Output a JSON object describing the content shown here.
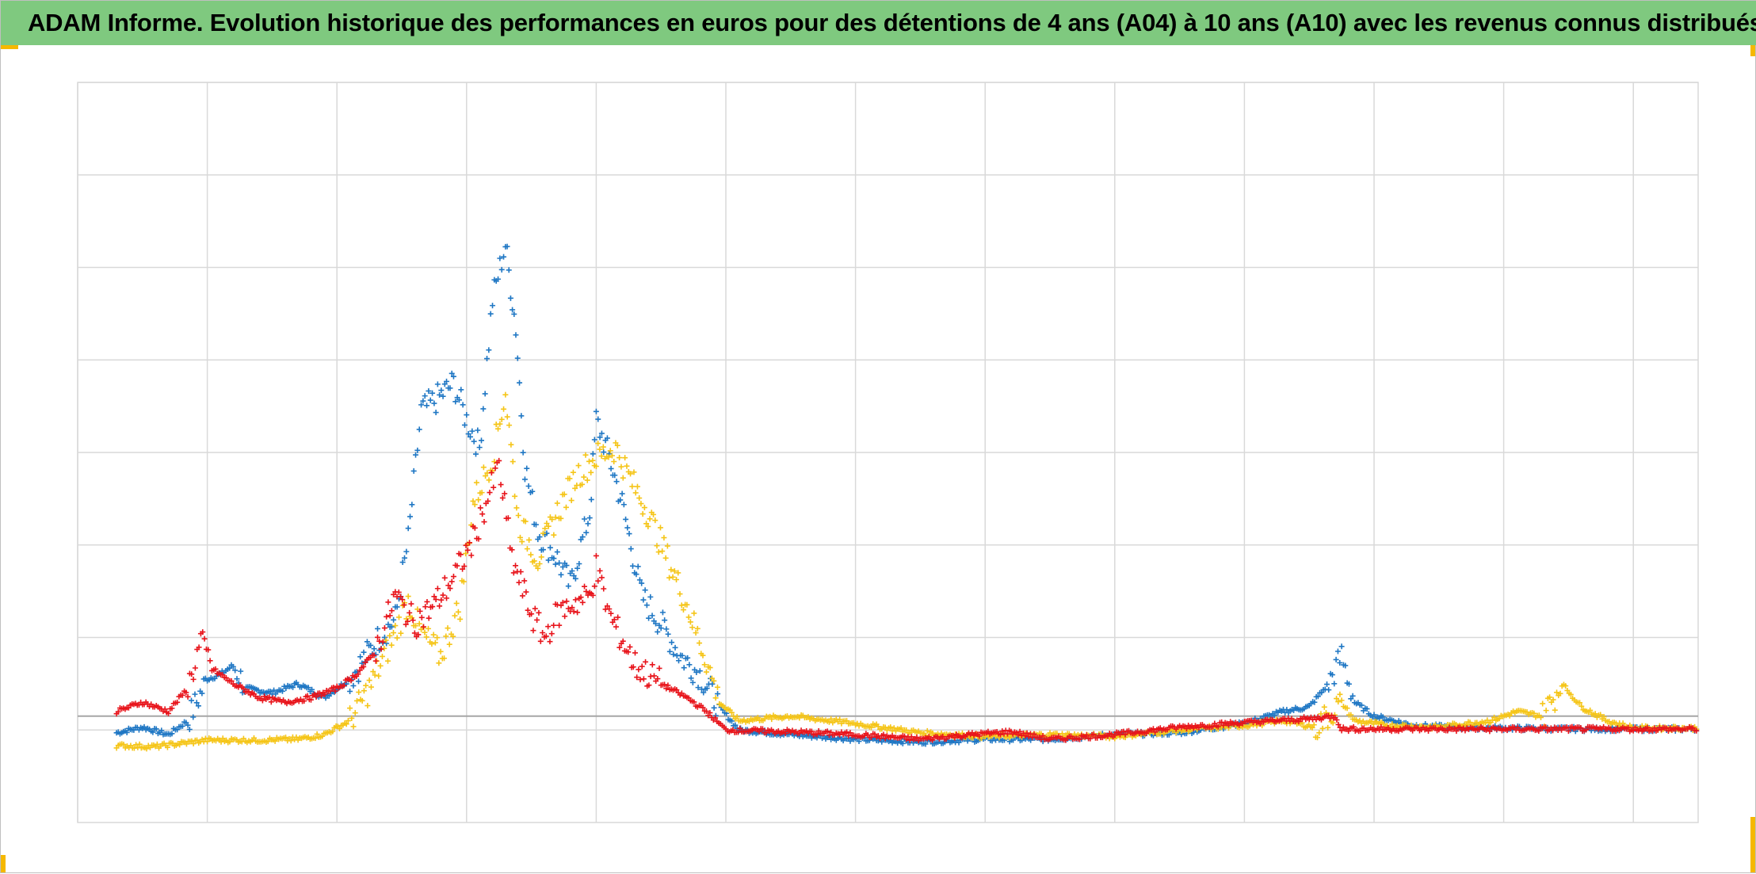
{
  "title": "ADAM Informe. Evolution historique des performances en euros pour des détentions de 4 ans (A04) à 10 ans (A10) avec les revenus connus distribués",
  "colors": {
    "title_bar": "#7fc97f",
    "accent_corners": "#f5b800",
    "grid": "#d9d9d9",
    "baseline": "#a6a6a6"
  },
  "chart_data": {
    "type": "scatter",
    "marker": "plus",
    "title": "ADAM Informe. Evolution historique des performances en euros pour des détentions de 4 ans (A04) à 10 ans (A10) avec les revenus connus distribués",
    "xlabel": "",
    "ylabel": "",
    "tick_labels_visible": false,
    "grid": true,
    "legend": "none",
    "x_gridlines": 13,
    "y_gridlines": 8,
    "xlim": [
      0,
      12.5
    ],
    "ylim": [
      -1.15,
      6.85
    ],
    "baseline_y": 0,
    "series": [
      {
        "color": "#1f77c4",
        "points": [
          [
            0.3,
            -0.18
          ],
          [
            0.5,
            -0.12
          ],
          [
            0.7,
            -0.2
          ],
          [
            0.85,
            -0.05
          ],
          [
            1.0,
            0.4
          ],
          [
            1.1,
            0.45
          ],
          [
            1.2,
            0.55
          ],
          [
            1.3,
            0.3
          ],
          [
            1.5,
            0.25
          ],
          [
            1.7,
            0.35
          ],
          [
            1.9,
            0.2
          ],
          [
            2.1,
            0.4
          ],
          [
            2.3,
            0.8
          ],
          [
            2.45,
            1.05
          ],
          [
            2.55,
            1.9
          ],
          [
            2.65,
            3.3
          ],
          [
            2.75,
            3.4
          ],
          [
            2.9,
            3.6
          ],
          [
            3.0,
            3.2
          ],
          [
            3.1,
            2.9
          ],
          [
            3.2,
            4.5
          ],
          [
            3.3,
            5.1
          ],
          [
            3.38,
            4.2
          ],
          [
            3.45,
            2.7
          ],
          [
            3.55,
            2.0
          ],
          [
            3.7,
            1.7
          ],
          [
            3.8,
            1.4
          ],
          [
            3.95,
            2.2
          ],
          [
            4.0,
            3.2
          ],
          [
            4.1,
            2.8
          ],
          [
            4.2,
            2.3
          ],
          [
            4.35,
            1.3
          ],
          [
            4.5,
            1.0
          ],
          [
            4.65,
            0.65
          ],
          [
            4.8,
            0.45
          ],
          [
            4.95,
            0.1
          ],
          [
            5.1,
            -0.15
          ],
          [
            5.5,
            -0.2
          ],
          [
            6.0,
            -0.25
          ],
          [
            6.5,
            -0.28
          ],
          [
            7.0,
            -0.25
          ],
          [
            7.5,
            -0.25
          ],
          [
            8.0,
            -0.2
          ],
          [
            8.5,
            -0.18
          ],
          [
            9.0,
            -0.08
          ],
          [
            9.3,
            0.05
          ],
          [
            9.5,
            0.1
          ],
          [
            9.65,
            0.35
          ],
          [
            9.75,
            0.65
          ],
          [
            9.85,
            0.15
          ],
          [
            10.0,
            0.0
          ],
          [
            10.3,
            -0.1
          ],
          [
            10.6,
            -0.12
          ],
          [
            11.0,
            -0.13
          ],
          [
            11.5,
            -0.14
          ],
          [
            12.0,
            -0.14
          ],
          [
            12.5,
            -0.14
          ]
        ]
      },
      {
        "color": "#f5c518",
        "points": [
          [
            0.3,
            -0.32
          ],
          [
            0.6,
            -0.33
          ],
          [
            1.0,
            -0.26
          ],
          [
            1.4,
            -0.26
          ],
          [
            1.7,
            -0.25
          ],
          [
            1.9,
            -0.2
          ],
          [
            2.1,
            -0.05
          ],
          [
            2.25,
            0.3
          ],
          [
            2.35,
            0.6
          ],
          [
            2.45,
            0.9
          ],
          [
            2.55,
            1.25
          ],
          [
            2.65,
            0.9
          ],
          [
            2.8,
            0.65
          ],
          [
            2.95,
            1.2
          ],
          [
            3.05,
            2.3
          ],
          [
            3.2,
            2.8
          ],
          [
            3.3,
            3.5
          ],
          [
            3.4,
            2.1
          ],
          [
            3.55,
            1.7
          ],
          [
            3.7,
            2.2
          ],
          [
            3.85,
            2.6
          ],
          [
            4.0,
            2.8
          ],
          [
            4.15,
            2.9
          ],
          [
            4.25,
            2.6
          ],
          [
            4.4,
            2.2
          ],
          [
            4.55,
            1.7
          ],
          [
            4.7,
            1.2
          ],
          [
            4.85,
            0.6
          ],
          [
            4.95,
            0.15
          ],
          [
            5.1,
            -0.05
          ],
          [
            5.5,
            0.0
          ],
          [
            6.0,
            -0.08
          ],
          [
            6.5,
            -0.18
          ],
          [
            7.0,
            -0.22
          ],
          [
            7.5,
            -0.2
          ],
          [
            8.0,
            -0.22
          ],
          [
            8.5,
            -0.15
          ],
          [
            9.0,
            -0.1
          ],
          [
            9.3,
            -0.05
          ],
          [
            9.55,
            -0.12
          ],
          [
            9.75,
            0.15
          ],
          [
            9.85,
            -0.05
          ],
          [
            10.1,
            -0.1
          ],
          [
            10.5,
            -0.12
          ],
          [
            10.9,
            -0.05
          ],
          [
            11.1,
            0.05
          ],
          [
            11.3,
            0.0
          ],
          [
            11.45,
            0.35
          ],
          [
            11.6,
            0.1
          ],
          [
            11.8,
            -0.05
          ],
          [
            12.0,
            -0.13
          ],
          [
            12.5,
            -0.13
          ]
        ]
      },
      {
        "color": "#e8141b",
        "points": [
          [
            0.3,
            0.05
          ],
          [
            0.5,
            0.15
          ],
          [
            0.7,
            0.05
          ],
          [
            0.85,
            0.3
          ],
          [
            0.95,
            0.8
          ],
          [
            1.05,
            0.5
          ],
          [
            1.2,
            0.35
          ],
          [
            1.4,
            0.2
          ],
          [
            1.6,
            0.15
          ],
          [
            1.8,
            0.2
          ],
          [
            2.0,
            0.3
          ],
          [
            2.15,
            0.45
          ],
          [
            2.3,
            0.7
          ],
          [
            2.45,
            1.3
          ],
          [
            2.6,
            1.0
          ],
          [
            2.75,
            1.2
          ],
          [
            2.9,
            1.5
          ],
          [
            3.05,
            1.9
          ],
          [
            3.15,
            2.3
          ],
          [
            3.25,
            2.7
          ],
          [
            3.35,
            1.7
          ],
          [
            3.5,
            1.1
          ],
          [
            3.6,
            0.85
          ],
          [
            3.7,
            1.1
          ],
          [
            3.8,
            1.2
          ],
          [
            3.95,
            1.3
          ],
          [
            4.0,
            1.6
          ],
          [
            4.1,
            1.1
          ],
          [
            4.3,
            0.55
          ],
          [
            4.5,
            0.35
          ],
          [
            4.7,
            0.2
          ],
          [
            4.85,
            0.05
          ],
          [
            5.0,
            -0.15
          ],
          [
            5.5,
            -0.17
          ],
          [
            6.0,
            -0.2
          ],
          [
            6.5,
            -0.25
          ],
          [
            6.9,
            -0.2
          ],
          [
            7.2,
            -0.17
          ],
          [
            7.5,
            -0.25
          ],
          [
            8.0,
            -0.2
          ],
          [
            8.5,
            -0.12
          ],
          [
            9.0,
            -0.07
          ],
          [
            9.5,
            -0.03
          ],
          [
            9.7,
            0.0
          ],
          [
            9.75,
            -0.14
          ],
          [
            10.0,
            -0.14
          ],
          [
            10.5,
            -0.14
          ],
          [
            11.0,
            -0.14
          ],
          [
            11.5,
            -0.14
          ],
          [
            12.0,
            -0.14
          ],
          [
            12.5,
            -0.14
          ]
        ]
      }
    ]
  }
}
